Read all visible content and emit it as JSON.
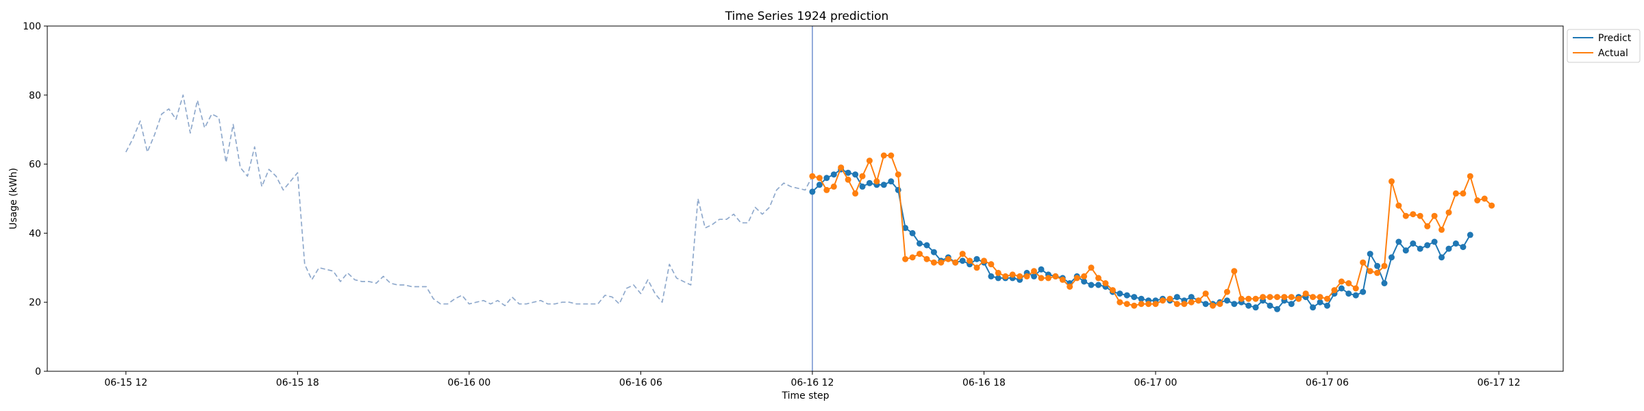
{
  "chart_data": {
    "type": "line",
    "title": "Time Series 1924 prediction",
    "xlabel": "Time step",
    "ylabel": "Usage (kWh)",
    "ylim": [
      0,
      100
    ],
    "xlim": [
      "2024-06-15T09:15",
      "2024-06-17T14:15"
    ],
    "x_ticks": [
      {
        "t": "2024-06-15T12:00",
        "label": "06-15 12"
      },
      {
        "t": "2024-06-15T18:00",
        "label": "06-15 18"
      },
      {
        "t": "2024-06-16T00:00",
        "label": "06-16 00"
      },
      {
        "t": "2024-06-16T06:00",
        "label": "06-16 06"
      },
      {
        "t": "2024-06-16T12:00",
        "label": "06-16 12"
      },
      {
        "t": "2024-06-16T18:00",
        "label": "06-16 18"
      },
      {
        "t": "2024-06-17T00:00",
        "label": "06-17 00"
      },
      {
        "t": "2024-06-17T06:00",
        "label": "06-17 06"
      },
      {
        "t": "2024-06-17T12:00",
        "label": "06-17 12"
      }
    ],
    "y_ticks": [
      0,
      20,
      40,
      60,
      80,
      100
    ],
    "forecast_start": "2024-06-16T12:00",
    "grid": false,
    "legend_position": "top-right",
    "series": [
      {
        "name": "",
        "style": "dashed",
        "color": "#8fa9cc",
        "start": "2024-06-15T12:00",
        "step_minutes": 15,
        "values": [
          63.5,
          67.5,
          72.5,
          63.5,
          68.5,
          74.5,
          76.0,
          73.0,
          80.0,
          69.0,
          78.5,
          70.5,
          74.5,
          73.5,
          60.5,
          71.5,
          59.0,
          56.5,
          65.0,
          53.5,
          58.5,
          56.5,
          52.5,
          55.0,
          57.5,
          31.0,
          26.5,
          30.0,
          29.5,
          29.0,
          26.0,
          28.5,
          26.5,
          26.0,
          26.0,
          25.5,
          27.5,
          25.5,
          25.0,
          25.0,
          24.5,
          24.5,
          24.5,
          21.0,
          19.5,
          19.5,
          21.0,
          22.0,
          19.5,
          20.0,
          20.5,
          19.5,
          20.5,
          19.0,
          21.5,
          19.5,
          19.5,
          20.0,
          20.5,
          19.5,
          19.5,
          20.0,
          20.0,
          19.5,
          19.5,
          19.5,
          19.5,
          22.0,
          21.5,
          19.5,
          24.0,
          25.0,
          22.5,
          26.5,
          22.5,
          20.0,
          31.0,
          27.0,
          26.0,
          25.0,
          50.0,
          41.5,
          42.5,
          44.0,
          44.0,
          45.5,
          43.0,
          43.0,
          47.5,
          45.5,
          47.5,
          52.5,
          54.5,
          53.5,
          53.0,
          52.5,
          56.5
        ]
      },
      {
        "name": "Predict",
        "style": "line-markers",
        "color": "#1f77b4",
        "start": "2024-06-16T12:00",
        "step_minutes": 15,
        "values": [
          52.0,
          54.0,
          56.0,
          57.0,
          58.5,
          57.5,
          57.0,
          53.5,
          54.5,
          54.0,
          54.0,
          55.0,
          52.5,
          41.5,
          40.0,
          37.0,
          36.5,
          34.5,
          32.0,
          33.0,
          31.5,
          32.0,
          31.0,
          32.5,
          31.5,
          27.5,
          27.0,
          27.0,
          27.0,
          26.5,
          28.5,
          27.5,
          29.5,
          28.0,
          27.5,
          27.0,
          25.5,
          27.5,
          26.0,
          25.0,
          25.0,
          24.5,
          23.0,
          22.5,
          22.0,
          21.5,
          21.0,
          20.5,
          20.5,
          21.0,
          20.5,
          21.5,
          20.5,
          21.5,
          20.5,
          19.5,
          19.5,
          20.0,
          20.5,
          19.5,
          20.0,
          19.0,
          18.5,
          20.5,
          19.0,
          18.0,
          20.5,
          19.5,
          21.5,
          21.5,
          18.5,
          20.0,
          19.0,
          22.5,
          24.0,
          22.5,
          22.0,
          23.0,
          34.0,
          30.5,
          25.5,
          33.0,
          37.5,
          35.0,
          37.0,
          35.5,
          36.5,
          37.5,
          33.0,
          35.5,
          37.0,
          36.0,
          39.5
        ]
      },
      {
        "name": "Actual",
        "style": "line-markers",
        "color": "#ff7f0e",
        "start": "2024-06-16T12:00",
        "step_minutes": 15,
        "values": [
          56.5,
          56.0,
          52.5,
          53.5,
          59.0,
          55.5,
          51.5,
          56.5,
          61.0,
          55.0,
          62.5,
          62.5,
          57.0,
          32.5,
          33.0,
          34.0,
          32.5,
          31.5,
          31.5,
          32.5,
          31.5,
          34.0,
          32.0,
          30.0,
          32.0,
          31.0,
          28.5,
          27.5,
          28.0,
          27.5,
          27.5,
          29.0,
          27.0,
          27.0,
          27.5,
          26.5,
          24.5,
          27.0,
          27.5,
          30.0,
          27.0,
          25.5,
          23.5,
          20.0,
          19.5,
          19.0,
          19.5,
          19.5,
          19.5,
          20.5,
          21.0,
          19.5,
          19.5,
          20.0,
          20.5,
          22.5,
          19.0,
          19.5,
          23.0,
          29.0,
          21.0,
          21.0,
          21.0,
          21.5,
          21.5,
          21.5,
          21.5,
          21.5,
          21.0,
          22.5,
          21.5,
          21.5,
          21.0,
          23.5,
          26.0,
          25.5,
          24.0,
          31.5,
          29.0,
          28.5,
          30.5,
          55.0,
          48.0,
          45.0,
          45.5,
          45.0,
          42.0,
          45.0,
          41.0,
          46.0,
          51.5,
          51.5,
          56.5,
          49.5,
          50.0,
          48.0
        ]
      }
    ]
  }
}
